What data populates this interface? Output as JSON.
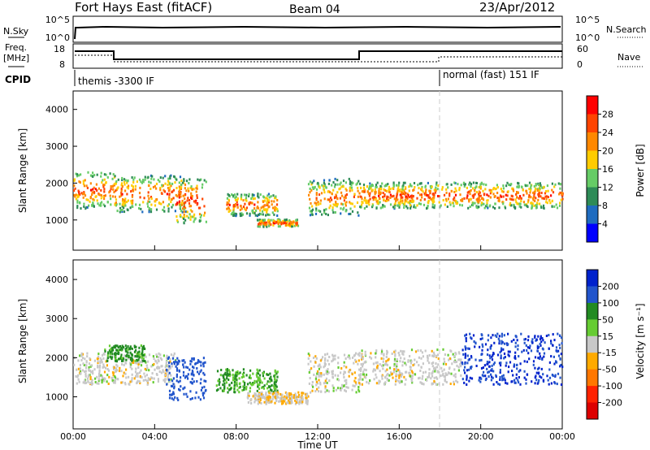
{
  "header": {
    "station": "Fort Hays East (fitACF)",
    "beam": "Beam 04",
    "date": "23/Apr/2012"
  },
  "top_panels": {
    "nsky_label": "N.Sky",
    "nsky_ticks": [
      "10^5",
      "10^0"
    ],
    "nsearch_label": "N.Search",
    "nsearch_ticks": [
      "10^5",
      "10^0"
    ],
    "freq_label": "Freq.",
    "freq_unit": "[MHz]",
    "freq_ticks": [
      "18",
      "8"
    ],
    "nave_label": "Nave",
    "nave_ticks": [
      "60",
      "0"
    ],
    "cpid_label": "CPID",
    "cpid_segments": [
      {
        "start_h": 0,
        "label": "themis -3300 IF"
      },
      {
        "start_h": 18,
        "label": "normal (fast) 151 IF"
      }
    ]
  },
  "chart_data": [
    {
      "type": "heatmap",
      "title": "Power",
      "ylabel": "Slant Range [km]",
      "xlabel": "",
      "ylim": [
        180,
        4500
      ],
      "yticks": [
        "1000",
        "2000",
        "3000",
        "4000"
      ],
      "colorbar_label": "Power [dB]",
      "colorbar_ticks": [
        "4",
        "8",
        "12",
        "16",
        "20",
        "24",
        "28"
      ],
      "colors": [
        "#0000ff",
        "#1f6cc0",
        "#2e8b57",
        "#66cc66",
        "#ffcc00",
        "#ff8800",
        "#ff4400",
        "#ff0000"
      ],
      "echo_regions": [
        {
          "t_start": 0.0,
          "t_end": 2.0,
          "r_low": 1300,
          "r_high": 2300,
          "level": 0.6
        },
        {
          "t_start": 2.0,
          "t_end": 5.5,
          "r_low": 1200,
          "r_high": 2200,
          "level": 0.55
        },
        {
          "t_start": 5.0,
          "t_end": 6.5,
          "r_low": 900,
          "r_high": 2100,
          "level": 0.7
        },
        {
          "t_start": 7.5,
          "t_end": 10.0,
          "r_low": 1100,
          "r_high": 1700,
          "level": 0.55
        },
        {
          "t_start": 9.0,
          "t_end": 11.0,
          "r_low": 800,
          "r_high": 1000,
          "level": 0.65
        },
        {
          "t_start": 11.5,
          "t_end": 14.0,
          "r_low": 1100,
          "r_high": 2100,
          "level": 0.5
        },
        {
          "t_start": 14.0,
          "t_end": 24.0,
          "r_low": 1300,
          "r_high": 2000,
          "level": 0.6
        }
      ]
    },
    {
      "type": "heatmap",
      "title": "Velocity",
      "ylabel": "Slant Range [km]",
      "xlabel": "Time UT",
      "xticks": [
        "00:00",
        "04:00",
        "08:00",
        "12:00",
        "16:00",
        "20:00",
        "00:00"
      ],
      "ylim": [
        180,
        4500
      ],
      "yticks": [
        "1000",
        "2000",
        "3000",
        "4000"
      ],
      "colorbar_label": "Velocity [m s⁻¹]",
      "colorbar_ticks": [
        "200",
        "100",
        "50",
        "15",
        "-15",
        "-50",
        "-100",
        "-200"
      ],
      "colors": [
        "#0022cc",
        "#2255cc",
        "#228b22",
        "#66cc33",
        "#c8c8c8",
        "#ffaa00",
        "#ff7700",
        "#ff2200",
        "#dd0000"
      ],
      "echo_regions": [
        {
          "t_start": 0.0,
          "t_end": 5.0,
          "r_low": 1300,
          "r_high": 2100,
          "velocity": 0
        },
        {
          "t_start": 1.5,
          "t_end": 3.5,
          "r_low": 1900,
          "r_high": 2300,
          "velocity": 60
        },
        {
          "t_start": 4.5,
          "t_end": 6.5,
          "r_low": 900,
          "r_high": 2000,
          "velocity": 150
        },
        {
          "t_start": 7.0,
          "t_end": 10.0,
          "r_low": 1100,
          "r_high": 1700,
          "velocity": 50
        },
        {
          "t_start": 8.5,
          "t_end": 11.5,
          "r_low": 800,
          "r_high": 1100,
          "velocity": -10
        },
        {
          "t_start": 11.5,
          "t_end": 14.0,
          "r_low": 1100,
          "r_high": 2100,
          "velocity": 0
        },
        {
          "t_start": 14.0,
          "t_end": 19.0,
          "r_low": 1300,
          "r_high": 2200,
          "velocity": 0
        },
        {
          "t_start": 19.0,
          "t_end": 24.0,
          "r_low": 1300,
          "r_high": 2600,
          "velocity": 200
        }
      ]
    }
  ]
}
